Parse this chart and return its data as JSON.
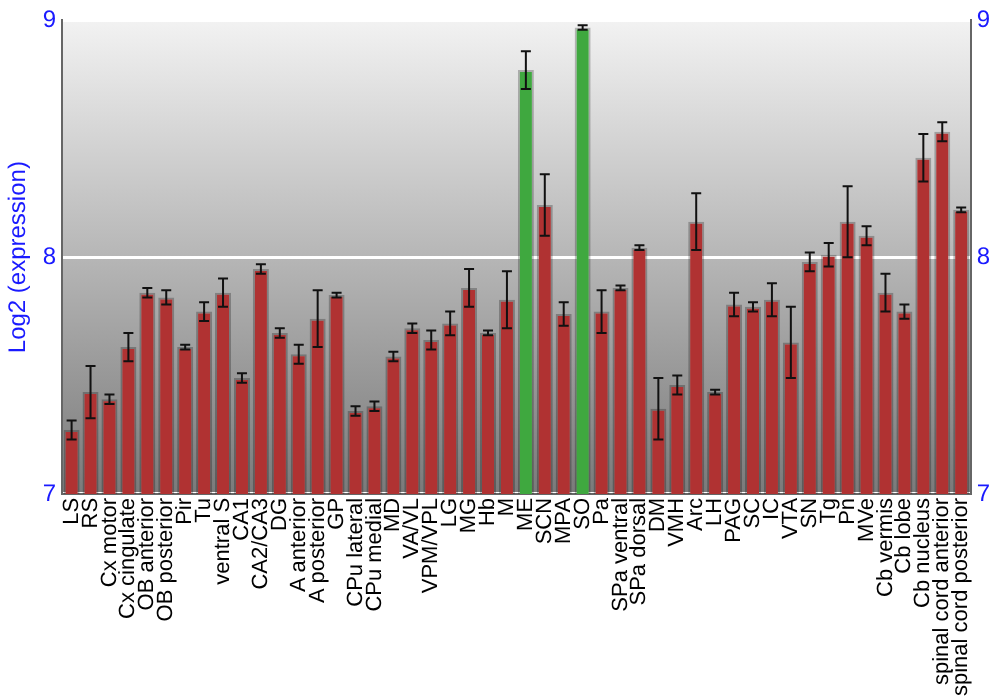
{
  "chart_data": {
    "type": "bar",
    "ylabel": "Log2 (expression)",
    "categories": [
      "LS",
      "RS",
      "Cx motor",
      "Cx cingulate",
      "OB anterior",
      "OB posterior",
      "Pir",
      "Tu",
      "ventral S",
      "CA1",
      "CA2/CA3",
      "DG",
      "A anterior",
      "A posterior",
      "GP",
      "CPu lateral",
      "CPu medial",
      "MD",
      "VA/VL",
      "VPM/VPL",
      "LG",
      "MG",
      "Hb",
      "M",
      "ME",
      "SCN",
      "MPA",
      "SO",
      "Pa",
      "SPa ventral",
      "SPa dorsal",
      "DM",
      "VMH",
      "Arc",
      "LH",
      "PAG",
      "SC",
      "IC",
      "VTA",
      "SN",
      "Tg",
      "Pn",
      "MVe",
      "Cb vermis",
      "Cb lobe",
      "Cb nucleus",
      "spinal cord anterior",
      "spinal cord posterior"
    ],
    "values": [
      7.27,
      7.43,
      7.4,
      7.62,
      7.85,
      7.83,
      7.62,
      7.77,
      7.85,
      7.49,
      7.95,
      7.68,
      7.59,
      7.74,
      7.84,
      7.35,
      7.37,
      7.58,
      7.7,
      7.65,
      7.72,
      7.87,
      7.68,
      7.82,
      8.79,
      8.22,
      7.76,
      8.97,
      7.77,
      7.87,
      8.04,
      7.36,
      7.46,
      8.15,
      7.43,
      7.8,
      7.79,
      7.82,
      7.64,
      7.98,
      8.01,
      8.15,
      8.09,
      7.85,
      7.77,
      8.42,
      8.53,
      8.2
    ],
    "errors": [
      0.04,
      0.11,
      0.02,
      0.06,
      0.02,
      0.03,
      0.01,
      0.04,
      0.06,
      0.02,
      0.02,
      0.02,
      0.04,
      0.12,
      0.01,
      0.02,
      0.02,
      0.02,
      0.02,
      0.04,
      0.05,
      0.08,
      0.01,
      0.12,
      0.08,
      0.13,
      0.05,
      0.01,
      0.09,
      0.01,
      0.01,
      0.13,
      0.04,
      0.12,
      0.01,
      0.05,
      0.02,
      0.07,
      0.15,
      0.04,
      0.05,
      0.15,
      0.04,
      0.08,
      0.03,
      0.1,
      0.04,
      0.01
    ],
    "colors": [
      "#b03232",
      "#b03232",
      "#b03232",
      "#b03232",
      "#b03232",
      "#b03232",
      "#b03232",
      "#b03232",
      "#b03232",
      "#b03232",
      "#b03232",
      "#b03232",
      "#b03232",
      "#b03232",
      "#b03232",
      "#b03232",
      "#b03232",
      "#b03232",
      "#b03232",
      "#b03232",
      "#b03232",
      "#b03232",
      "#b03232",
      "#b03232",
      "#3fa83f",
      "#b03232",
      "#b03232",
      "#3fa83f",
      "#b03232",
      "#b03232",
      "#b03232",
      "#b03232",
      "#b03232",
      "#b03232",
      "#b03232",
      "#b03232",
      "#b03232",
      "#b03232",
      "#b03232",
      "#b03232",
      "#b03232",
      "#b03232",
      "#b03232",
      "#b03232",
      "#b03232",
      "#b03232",
      "#b03232",
      "#b03232"
    ],
    "ylim": [
      7,
      9
    ],
    "yticks": [
      7,
      8,
      9
    ],
    "y2lim": [
      7,
      9
    ],
    "y2ticks": [
      7,
      8,
      9
    ],
    "grid": "y",
    "legend": false
  }
}
